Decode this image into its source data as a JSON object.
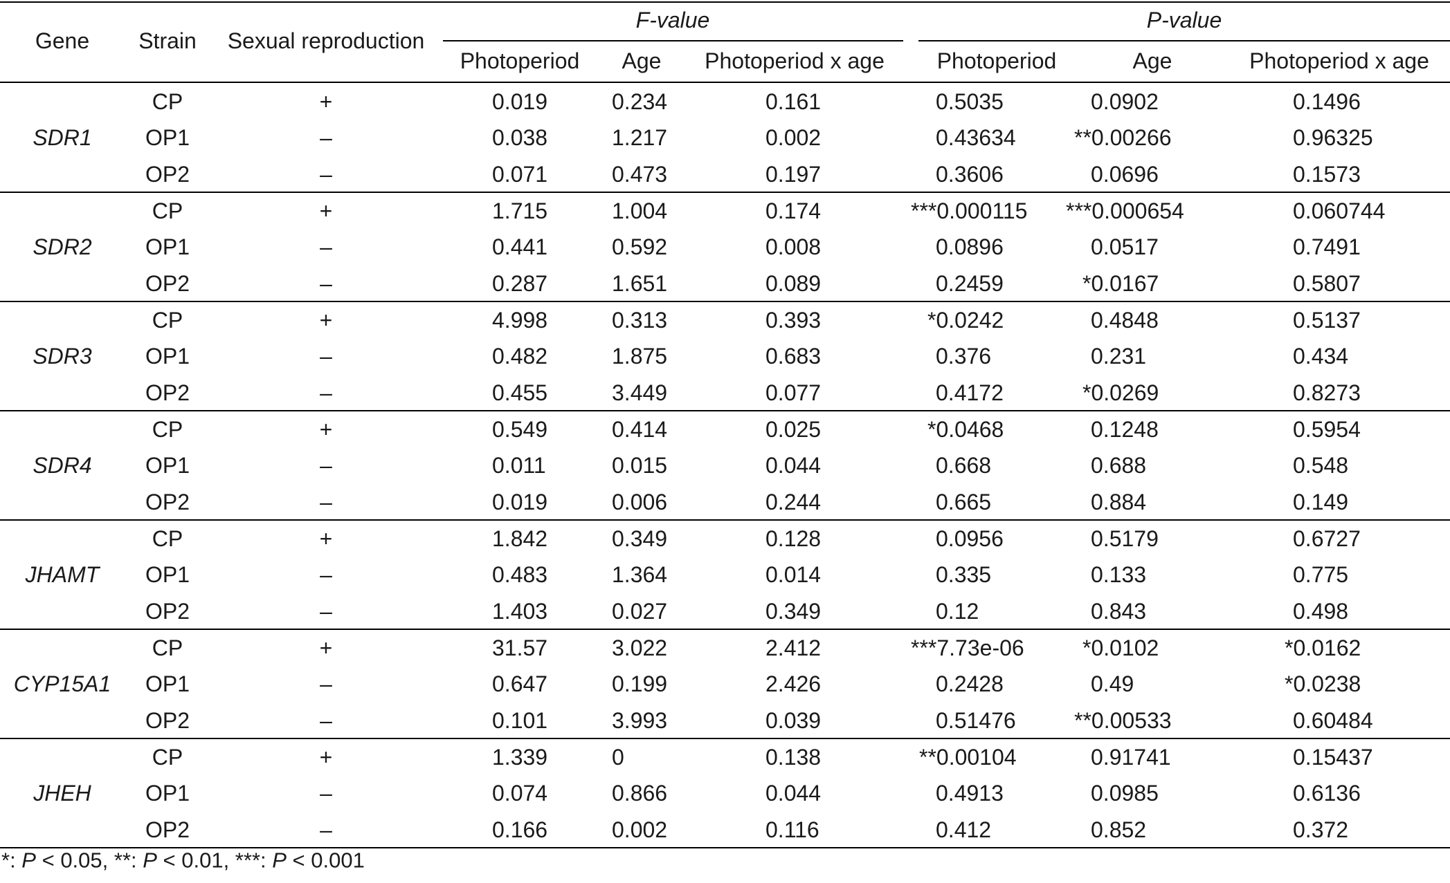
{
  "table": {
    "headers": {
      "gene": "Gene",
      "strain": "Strain",
      "sexual": "Sexual reproduction",
      "fvalue": "F-value",
      "pvalue": "P-value",
      "sub": [
        "Photoperiod",
        "Age",
        "Photoperiod x age"
      ]
    },
    "groups": [
      {
        "gene": "SDR1",
        "rows": [
          {
            "strain": "CP",
            "sex": "+",
            "f": [
              "0.019",
              "0.234",
              "0.161"
            ],
            "p": [
              "0.5035",
              "0.0902",
              "0.1496"
            ]
          },
          {
            "strain": "OP1",
            "sex": "–",
            "f": [
              "0.038",
              "1.217",
              "0.002"
            ],
            "p": [
              "0.43634",
              "**0.00266",
              "0.96325"
            ]
          },
          {
            "strain": "OP2",
            "sex": "–",
            "f": [
              "0.071",
              "0.473",
              "0.197"
            ],
            "p": [
              "0.3606",
              "0.0696",
              "0.1573"
            ]
          }
        ]
      },
      {
        "gene": "SDR2",
        "rows": [
          {
            "strain": "CP",
            "sex": "+",
            "f": [
              "1.715",
              "1.004",
              "0.174"
            ],
            "p": [
              "***0.000115",
              "***0.000654",
              "0.060744"
            ]
          },
          {
            "strain": "OP1",
            "sex": "–",
            "f": [
              "0.441",
              "0.592",
              "0.008"
            ],
            "p": [
              "0.0896",
              "0.0517",
              "0.7491"
            ]
          },
          {
            "strain": "OP2",
            "sex": "–",
            "f": [
              "0.287",
              "1.651",
              "0.089"
            ],
            "p": [
              "0.2459",
              "*0.0167",
              "0.5807"
            ]
          }
        ]
      },
      {
        "gene": "SDR3",
        "rows": [
          {
            "strain": "CP",
            "sex": "+",
            "f": [
              "4.998",
              "0.313",
              "0.393"
            ],
            "p": [
              "*0.0242",
              "0.4848",
              "0.5137"
            ]
          },
          {
            "strain": "OP1",
            "sex": "–",
            "f": [
              "0.482",
              "1.875",
              "0.683"
            ],
            "p": [
              "0.376",
              "0.231",
              "0.434"
            ]
          },
          {
            "strain": "OP2",
            "sex": "–",
            "f": [
              "0.455",
              "3.449",
              "0.077"
            ],
            "p": [
              "0.4172",
              "*0.0269",
              "0.8273"
            ]
          }
        ]
      },
      {
        "gene": "SDR4",
        "rows": [
          {
            "strain": "CP",
            "sex": "+",
            "f": [
              "0.549",
              "0.414",
              "0.025"
            ],
            "p": [
              "*0.0468",
              "0.1248",
              "0.5954"
            ]
          },
          {
            "strain": "OP1",
            "sex": "–",
            "f": [
              "0.011",
              "0.015",
              "0.044"
            ],
            "p": [
              "0.668",
              "0.688",
              "0.548"
            ]
          },
          {
            "strain": "OP2",
            "sex": "–",
            "f": [
              "0.019",
              "0.006",
              "0.244"
            ],
            "p": [
              "0.665",
              "0.884",
              "0.149"
            ]
          }
        ]
      },
      {
        "gene": "JHAMT",
        "rows": [
          {
            "strain": "CP",
            "sex": "+",
            "f": [
              "1.842",
              "0.349",
              "0.128"
            ],
            "p": [
              "0.0956",
              "0.5179",
              "0.6727"
            ]
          },
          {
            "strain": "OP1",
            "sex": "–",
            "f": [
              "0.483",
              "1.364",
              "0.014"
            ],
            "p": [
              "0.335",
              "0.133",
              "0.775"
            ]
          },
          {
            "strain": "OP2",
            "sex": "–",
            "f": [
              "1.403",
              "0.027",
              "0.349"
            ],
            "p": [
              "0.12",
              "0.843",
              "0.498"
            ]
          }
        ]
      },
      {
        "gene": "CYP15A1",
        "rows": [
          {
            "strain": "CP",
            "sex": "+",
            "f": [
              "31.57",
              "3.022",
              "2.412"
            ],
            "p": [
              "***7.73e-06",
              "*0.0102",
              "*0.0162"
            ]
          },
          {
            "strain": "OP1",
            "sex": "–",
            "f": [
              "0.647",
              "0.199",
              "2.426"
            ],
            "p": [
              "0.2428",
              "0.49",
              "*0.0238"
            ]
          },
          {
            "strain": "OP2",
            "sex": "–",
            "f": [
              "0.101",
              "3.993",
              "0.039"
            ],
            "p": [
              "0.51476",
              "**0.00533",
              "0.60484"
            ]
          }
        ]
      },
      {
        "gene": "JHEH",
        "rows": [
          {
            "strain": "CP",
            "sex": "+",
            "f": [
              "1.339",
              "0",
              "0.138"
            ],
            "p": [
              "**0.00104",
              "0.91741",
              "0.15437"
            ]
          },
          {
            "strain": "OP1",
            "sex": "–",
            "f": [
              "0.074",
              "0.866",
              "0.044"
            ],
            "p": [
              "0.4913",
              "0.0985",
              "0.6136"
            ]
          },
          {
            "strain": "OP2",
            "sex": "–",
            "f": [
              "0.166",
              "0.002",
              "0.116"
            ],
            "p": [
              "0.412",
              "0.852",
              "0.372"
            ]
          }
        ]
      }
    ]
  },
  "footnote": {
    "s1": "*: ",
    "p1": "P",
    "t1": " < 0.05, **: ",
    "p2": "P",
    "t2": " < 0.01, ***: ",
    "p3": "P",
    "t3": " < 0.001"
  }
}
